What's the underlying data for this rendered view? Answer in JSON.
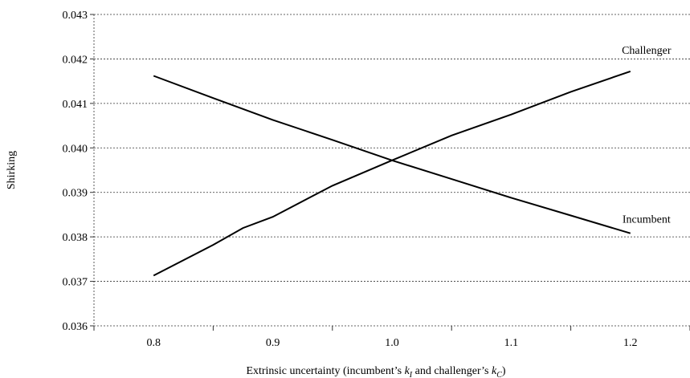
{
  "chart_data": {
    "type": "line",
    "title": "",
    "xlabel_parts": [
      "Extrinsic uncertainty (incumbent’s ",
      "k",
      "I",
      " and challenger’s ",
      "k",
      "C",
      ")"
    ],
    "ylabel": "Shirking",
    "x_ticks": [
      0.8,
      0.9,
      1.0,
      1.1,
      1.2
    ],
    "x_tick_labels": [
      "0.8",
      "0.9",
      "1.0",
      "1.1",
      "1.2"
    ],
    "y_ticks": [
      0.036,
      0.037,
      0.038,
      0.039,
      0.04,
      0.041,
      0.042,
      0.043
    ],
    "y_tick_labels": [
      "0.036",
      "0.037",
      "0.038",
      "0.039",
      "0.040",
      "0.041",
      "0.042",
      "0.043"
    ],
    "xlim": [
      0.75,
      1.25
    ],
    "ylim": [
      0.036,
      0.043
    ],
    "grid": true,
    "series": [
      {
        "name": "Challenger",
        "x": [
          0.8,
          0.85,
          0.875,
          0.9,
          0.95,
          1.0,
          1.05,
          1.1,
          1.15,
          1.2
        ],
        "y": [
          0.03713,
          0.03782,
          0.0382,
          0.03845,
          0.03915,
          0.03972,
          0.04028,
          0.04075,
          0.04126,
          0.04172
        ]
      },
      {
        "name": "Incumbent",
        "x": [
          0.8,
          0.85,
          0.9,
          0.95,
          1.0,
          1.05,
          1.1,
          1.15,
          1.2
        ],
        "y": [
          0.04162,
          0.04112,
          0.04063,
          0.04018,
          0.03972,
          0.0393,
          0.03888,
          0.03848,
          0.03808
        ]
      }
    ]
  }
}
